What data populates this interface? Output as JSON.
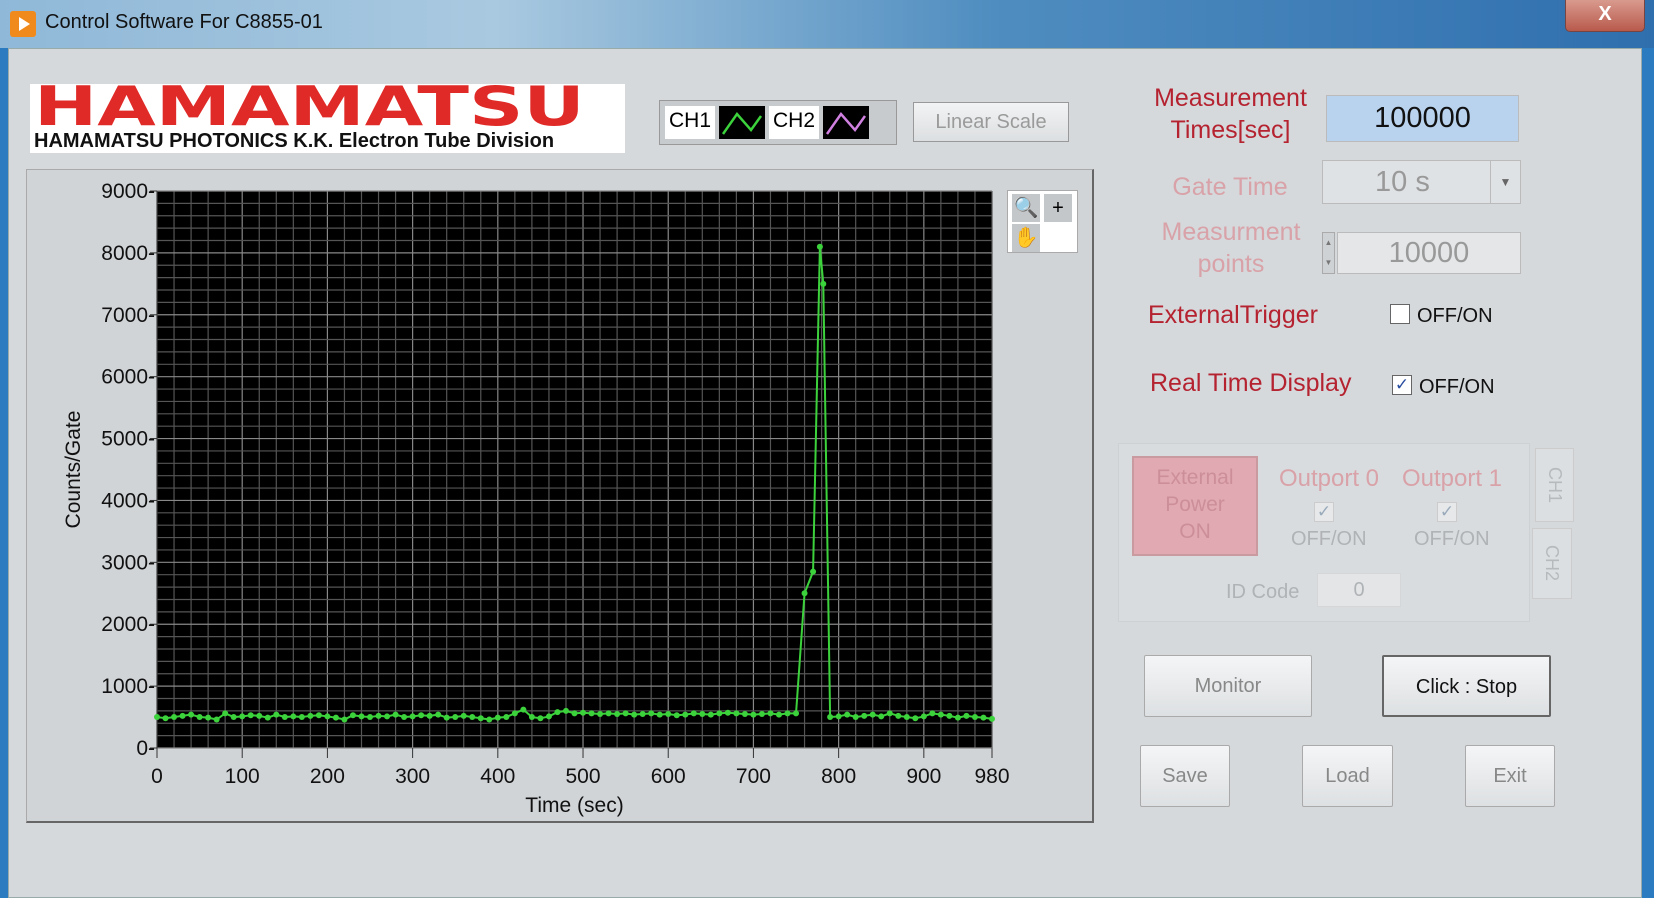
{
  "window": {
    "title": "Control Software For C8855-01",
    "close_label": "X"
  },
  "logo": {
    "brand": "HAMAMATSU",
    "subtitle": "HAMAMATSU PHOTONICS K.K. Electron Tube Division"
  },
  "legend": {
    "ch1": "CH1",
    "ch2": "CH2",
    "ch1_color": "#3cd23c",
    "ch2_color": "#d080e0"
  },
  "scale_button": "Linear Scale",
  "settings": {
    "measurement_times_label_1": "Measurement",
    "measurement_times_label_2": "Times[sec]",
    "measurement_times_value": "100000",
    "gate_time_label": "Gate Time",
    "gate_time_value": "10 s",
    "points_label_1": "Measurment",
    "points_label_2": "points",
    "points_value": "10000",
    "external_trigger_label": "ExternalTrigger",
    "external_trigger_toggle": "OFF/ON",
    "external_trigger_checked": false,
    "realtime_label": "Real Time Display",
    "realtime_toggle": "OFF/ON",
    "realtime_checked": true
  },
  "power_panel": {
    "ext_power_1": "External",
    "ext_power_2": "Power",
    "ext_power_3": "ON",
    "outport0": "Outport 0",
    "outport1": "Outport 1",
    "toggle": "OFF/ON",
    "id_code_label": "ID Code",
    "id_code_value": "0",
    "tab_ch1": "CH1",
    "tab_ch2": "CH2"
  },
  "buttons": {
    "monitor": "Monitor",
    "stop": "Click : Stop",
    "save": "Save",
    "load": "Load",
    "exit": "Exit"
  },
  "chart_data": {
    "type": "line",
    "xlabel": "Time (sec)",
    "ylabel": "Counts/Gate",
    "xlim": [
      0,
      980
    ],
    "ylim": [
      0,
      9000
    ],
    "xticks": [
      0,
      100,
      200,
      300,
      400,
      500,
      600,
      700,
      800,
      900,
      980
    ],
    "yticks": [
      0,
      1000,
      2000,
      3000,
      4000,
      5000,
      6000,
      7000,
      8000,
      9000
    ],
    "grid": true,
    "background": "#000000",
    "line_color": "#3cd23c",
    "series": [
      {
        "x": [
          0,
          10,
          20,
          30,
          40,
          50,
          60,
          70,
          80,
          90,
          100,
          110,
          120,
          130,
          140,
          150,
          160,
          170,
          180,
          190,
          200,
          210,
          220,
          230,
          240,
          250,
          260,
          270,
          280,
          290,
          300,
          310,
          320,
          330,
          340,
          350,
          360,
          370,
          380,
          390,
          400,
          410,
          420,
          430,
          440,
          450,
          460,
          470,
          480,
          490,
          500,
          510,
          520,
          530,
          540,
          550,
          560,
          570,
          580,
          590,
          600,
          610,
          620,
          630,
          640,
          650,
          660,
          670,
          680,
          690,
          700,
          710,
          720,
          730,
          740,
          750,
          760,
          770,
          778,
          782,
          790,
          800,
          810,
          820,
          830,
          840,
          850,
          860,
          870,
          880,
          890,
          900,
          910,
          920,
          930,
          940,
          950,
          960,
          970,
          980
        ],
        "y": [
          500,
          480,
          500,
          520,
          540,
          500,
          490,
          460,
          560,
          500,
          510,
          530,
          520,
          490,
          540,
          500,
          510,
          500,
          520,
          530,
          510,
          490,
          460,
          530,
          510,
          500,
          520,
          510,
          540,
          500,
          510,
          530,
          520,
          540,
          490,
          500,
          520,
          500,
          480,
          460,
          490,
          500,
          560,
          620,
          500,
          480,
          510,
          580,
          600,
          560,
          570,
          560,
          550,
          560,
          550,
          560,
          540,
          550,
          560,
          540,
          550,
          530,
          540,
          560,
          550,
          540,
          560,
          570,
          560,
          550,
          540,
          550,
          560,
          540,
          560,
          560,
          2500,
          2850,
          8100,
          7500,
          500,
          510,
          540,
          500,
          520,
          540,
          510,
          560,
          520,
          500,
          480,
          510,
          560,
          540,
          520,
          490,
          520,
          500,
          490,
          470
        ]
      }
    ]
  }
}
